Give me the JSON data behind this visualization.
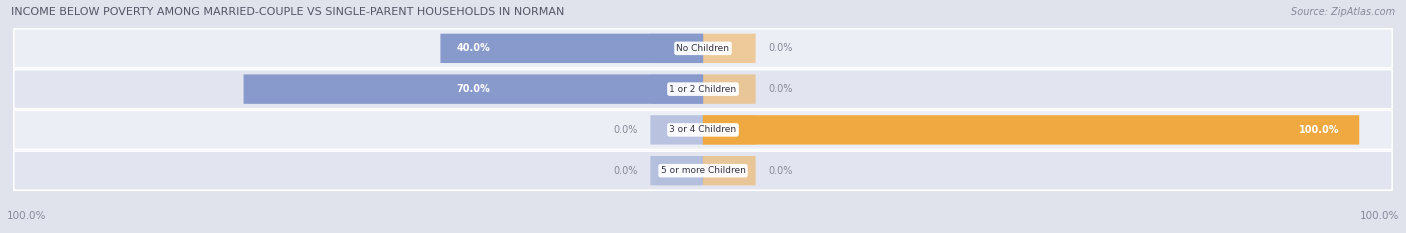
{
  "title": "INCOME BELOW POVERTY AMONG MARRIED-COUPLE VS SINGLE-PARENT HOUSEHOLDS IN NORMAN",
  "source": "Source: ZipAtlas.com",
  "categories": [
    "No Children",
    "1 or 2 Children",
    "3 or 4 Children",
    "5 or more Children"
  ],
  "married_values": [
    40.0,
    70.0,
    0.0,
    0.0
  ],
  "single_values": [
    0.0,
    0.0,
    100.0,
    0.0
  ],
  "married_color": "#8899CC",
  "single_color": "#F0A840",
  "bg_color": "#E0E3EC",
  "row_bg_light": "#ECEEF5",
  "row_bg_dark": "#E2E5EF",
  "title_color": "#555566",
  "label_color": "#888899",
  "label_dark": "#666677",
  "axis_label_left": "100.0%",
  "axis_label_right": "100.0%",
  "figsize": [
    14.06,
    2.33
  ]
}
